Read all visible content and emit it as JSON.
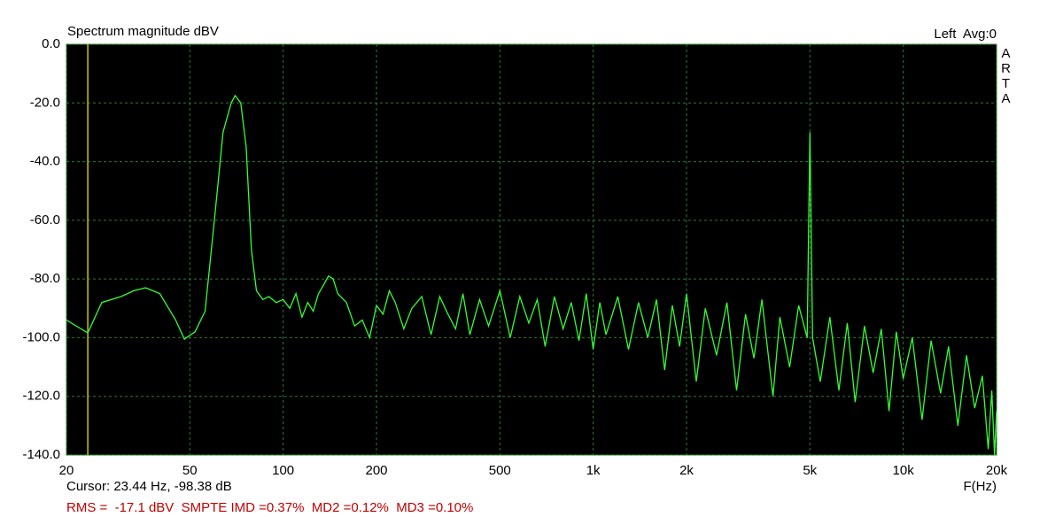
{
  "chart_data": {
    "type": "line",
    "title": "Spectrum magnitude dBV",
    "channel_label": "Left  Avg:0",
    "watermark": "ARTA",
    "x_label": "F(Hz)",
    "cursor_readout": "Cursor: 23.44 Hz, -98.38 dB",
    "cursor_x": 23.44,
    "measurements": "RMS =  -17.1 dBV  SMPTE IMD =0.37%  MD2 =0.12%  MD3 =0.10%",
    "x_scale": "log",
    "grid": true,
    "color": "#33ff33",
    "xlim": [
      20,
      20000
    ],
    "ylim": [
      -140,
      0
    ],
    "xticks": [
      20,
      50,
      100,
      200,
      500,
      {
        "value": 1000,
        "label": "1k"
      },
      {
        "value": 2000,
        "label": "2k"
      },
      {
        "value": 5000,
        "label": "5k"
      },
      {
        "value": 10000,
        "label": "10k"
      },
      {
        "value": 20000,
        "label": "20k"
      }
    ],
    "yticks": [
      {
        "value": 0,
        "label": "0.0"
      },
      {
        "value": -20,
        "label": "-20.0"
      },
      {
        "value": -40,
        "label": "-40.0"
      },
      {
        "value": -60,
        "label": "-60.0"
      },
      {
        "value": -80,
        "label": "-80.0"
      },
      {
        "value": -100,
        "label": "-100.0"
      },
      {
        "value": -120,
        "label": "-120.0"
      },
      {
        "value": -140,
        "label": "-140.0"
      }
    ],
    "x": [
      20,
      23.44,
      26,
      30,
      33,
      36,
      40,
      45,
      48,
      52,
      56,
      60,
      64,
      68,
      70,
      73,
      76,
      79,
      82,
      86,
      90,
      95,
      100,
      105,
      110,
      115,
      120,
      125,
      130,
      135,
      140,
      145,
      150,
      160,
      170,
      180,
      190,
      200,
      210,
      220,
      230,
      245,
      260,
      280,
      300,
      320,
      340,
      360,
      380,
      400,
      430,
      460,
      500,
      540,
      580,
      620,
      660,
      700,
      750,
      800,
      850,
      900,
      950,
      1000,
      1050,
      1100,
      1200,
      1300,
      1400,
      1500,
      1600,
      1700,
      1800,
      1900,
      2000,
      2150,
      2300,
      2500,
      2700,
      2900,
      3100,
      3300,
      3500,
      3800,
      4000,
      4300,
      4600,
      4900,
      5000,
      5100,
      5400,
      5800,
      6200,
      6600,
      7000,
      7500,
      8000,
      8500,
      9000,
      9500,
      10000,
      10700,
      11500,
      12300,
      13200,
      14000,
      15000,
      16000,
      17000,
      18000,
      18800,
      19300,
      19700,
      20000
    ],
    "values": [
      -94,
      -98.4,
      -88,
      -86,
      -84,
      -83,
      -85,
      -94,
      -100.5,
      -98,
      -91,
      -60,
      -30,
      -20,
      -17.5,
      -20,
      -35,
      -70,
      -84,
      -87,
      -86,
      -88,
      -87,
      -90,
      -85,
      -93,
      -88,
      -91,
      -85,
      -82,
      -79,
      -80,
      -85,
      -88,
      -96,
      -94,
      -100,
      -89,
      -92,
      -84,
      -88,
      -97,
      -90,
      -86,
      -99,
      -86,
      -92,
      -97,
      -85,
      -99,
      -87,
      -96,
      -84,
      -100,
      -86,
      -95,
      -87,
      -103,
      -86,
      -97,
      -88,
      -101,
      -85,
      -104,
      -88,
      -99,
      -86,
      -104,
      -88,
      -100,
      -87,
      -111,
      -89,
      -103,
      -85,
      -115,
      -90,
      -106,
      -88,
      -118,
      -92,
      -107,
      -87,
      -120,
      -93,
      -110,
      -89,
      -100,
      -30,
      -100,
      -115,
      -93,
      -118,
      -95,
      -122,
      -96,
      -112,
      -97,
      -125,
      -98,
      -114,
      -100,
      -128,
      -101,
      -119,
      -103,
      -130,
      -106,
      -124,
      -113,
      -138,
      -118,
      -140,
      -125
    ]
  }
}
